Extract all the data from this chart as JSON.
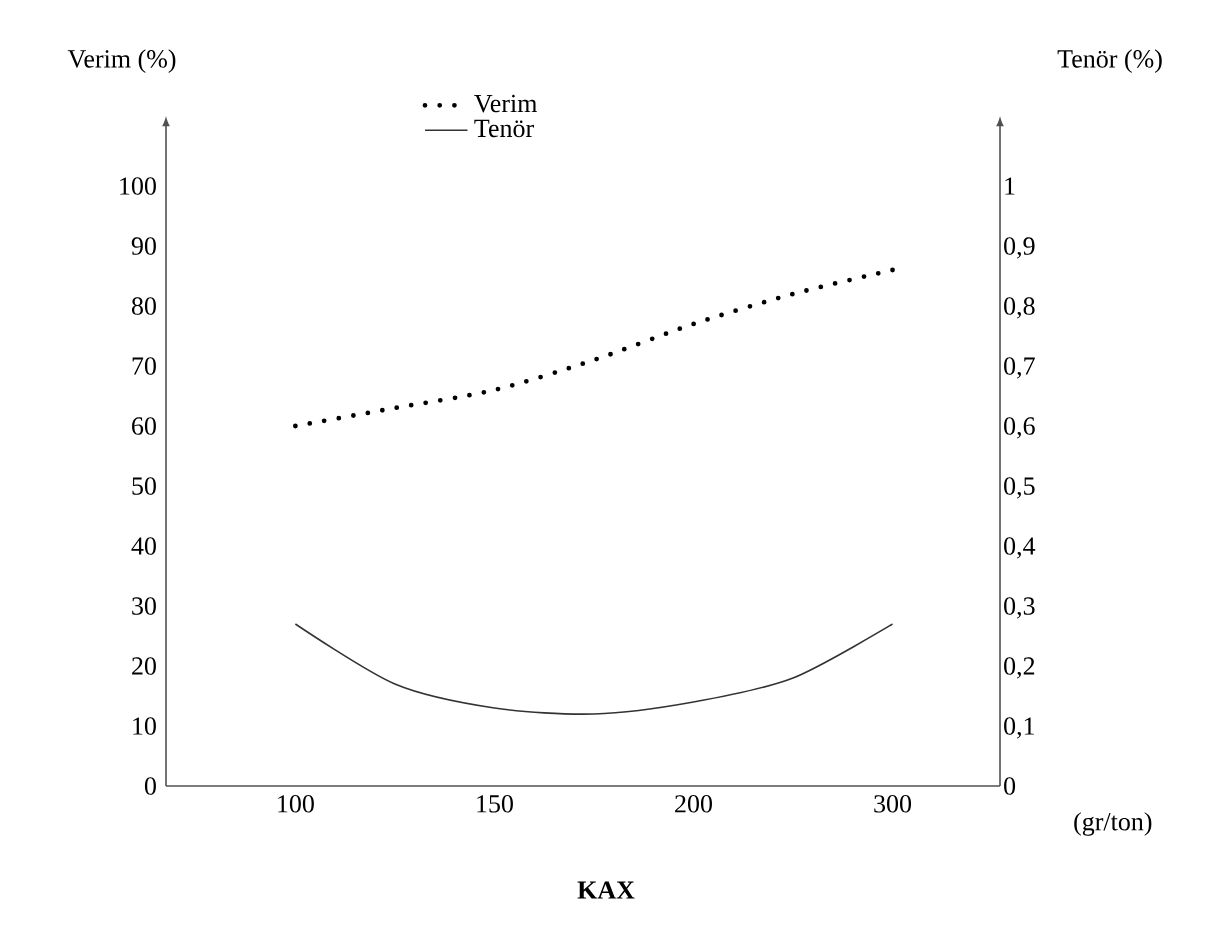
{
  "chart_data": {
    "type": "line",
    "title": "KAX",
    "xlabel": "(gr/ton)",
    "ylabel": "Verim (%)",
    "y2label": "Tenör (%)",
    "categories": [
      "100",
      null,
      "150",
      null,
      "200",
      null,
      "300"
    ],
    "series": [
      {
        "name": "Verim",
        "color": "#000000",
        "line_style": "dotted",
        "values": [
          60,
          63,
          66,
          71,
          77,
          82,
          86
        ]
      },
      {
        "name": "Tenör",
        "color": "#333333",
        "line_style": "solid",
        "axis": "y2",
        "values": [
          0.27,
          0.17,
          0.13,
          0.12,
          0.14,
          0.18,
          0.27
        ]
      }
    ],
    "ylim": [
      0,
      110
    ],
    "yticks": [
      0,
      10,
      20,
      30,
      40,
      50,
      60,
      70,
      80,
      90,
      100
    ],
    "y2lim": [
      0,
      1.1
    ],
    "y2ticks": [
      0,
      {
        "value": 0.1,
        "label": "0,1"
      },
      {
        "value": 0.2,
        "label": "0,2"
      },
      {
        "value": 0.3,
        "label": "0,3"
      },
      {
        "value": 0.4,
        "label": "0,4"
      },
      {
        "value": 0.5,
        "label": "0,5"
      },
      {
        "value": 0.6,
        "label": "0,6"
      },
      {
        "value": 0.7,
        "label": "0,7"
      },
      {
        "value": 0.8,
        "label": "0,8"
      },
      {
        "value": 0.9,
        "label": "0,9"
      },
      1
    ],
    "legend": "top",
    "marker": "none"
  }
}
